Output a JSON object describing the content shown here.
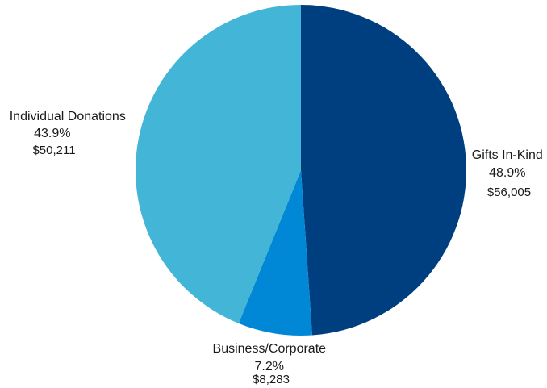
{
  "chart_data": {
    "type": "pie",
    "title": "",
    "legend": "none",
    "slices": [
      {
        "name": "Gifts In-Kind",
        "percent_label": "48.9%",
        "value_label": "$56,005",
        "value": 56005,
        "color": "#003f7f"
      },
      {
        "name": "Business/Corporate",
        "percent_label": "7.2%",
        "value_label": "$8,283",
        "value": 8283,
        "color": "#0088d6"
      },
      {
        "name": "Individual Donations",
        "percent_label": "43.9%",
        "value_label": "$50,211",
        "value": 50211,
        "color": "#43b5d6"
      }
    ]
  }
}
